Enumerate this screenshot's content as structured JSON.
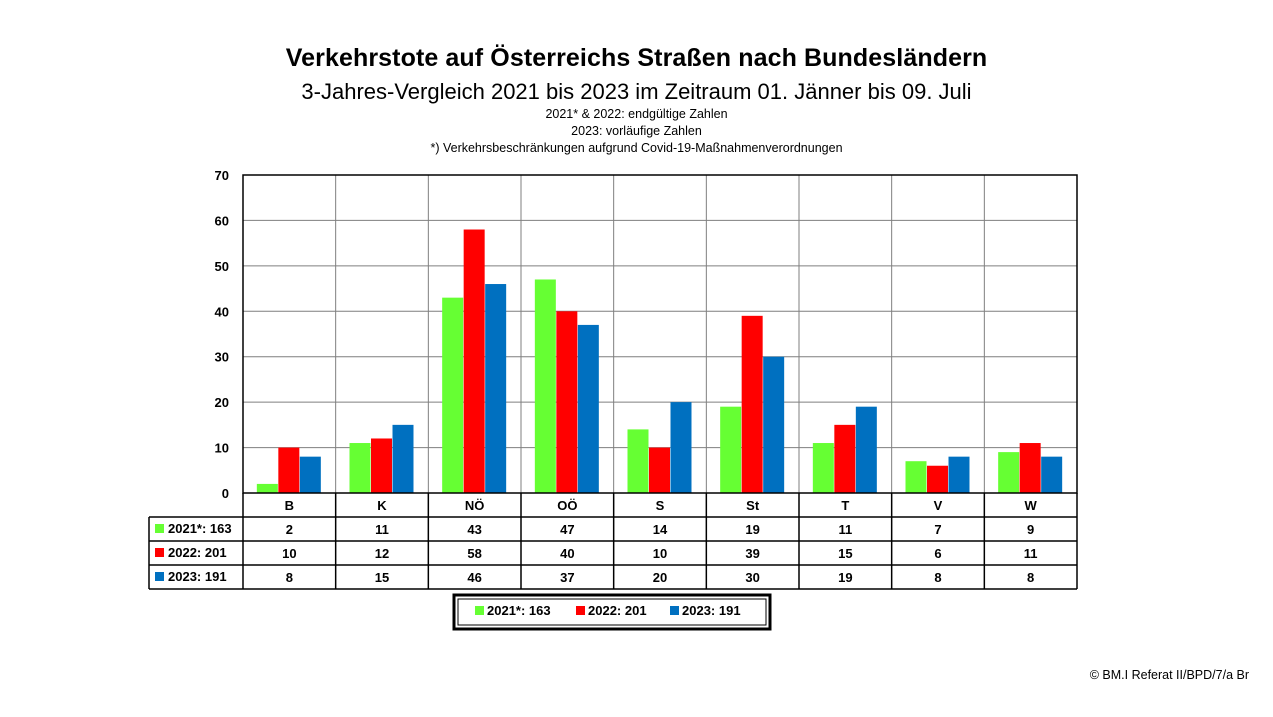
{
  "title": "Verkehrstote auf Österreichs Straßen nach Bundesländern",
  "subtitle": "3-Jahres-Vergleich 2021 bis 2023 im Zeitraum 01. Jänner bis 09. Juli",
  "notes": [
    "2021* & 2022: endgültige Zahlen",
    "2023: vorläufige Zahlen",
    "*) Verkehrsbeschränkungen aufgrund Covid-19-Maßnahmenverordnungen"
  ],
  "copyright": "© BM.I Referat II/BPD/7/a Br",
  "chart_data": {
    "type": "bar",
    "categories": [
      "B",
      "K",
      "NÖ",
      "OÖ",
      "S",
      "St",
      "T",
      "V",
      "W"
    ],
    "series": [
      {
        "name": "2021*: 163",
        "color": "#66ff33",
        "values": [
          2,
          11,
          43,
          47,
          14,
          19,
          11,
          7,
          9
        ]
      },
      {
        "name": "2022: 201",
        "color": "#ff0000",
        "values": [
          10,
          12,
          58,
          40,
          10,
          39,
          15,
          6,
          11
        ]
      },
      {
        "name": "2023: 191",
        "color": "#0070c0",
        "values": [
          8,
          15,
          46,
          37,
          20,
          30,
          19,
          8,
          8
        ]
      }
    ],
    "ylim": [
      0,
      70
    ],
    "yticks": [
      0,
      10,
      20,
      30,
      40,
      50,
      60,
      70
    ],
    "grid": true,
    "data_table": true,
    "legend": "bottom-center"
  }
}
